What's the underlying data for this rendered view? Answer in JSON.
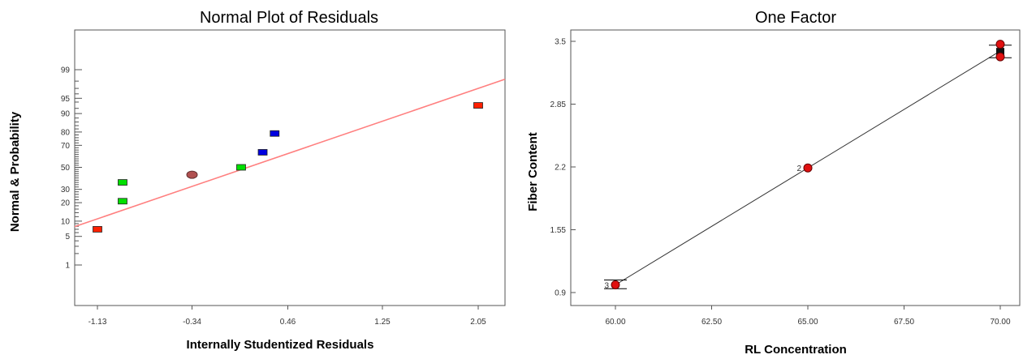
{
  "chart_data": [
    {
      "type": "scatter",
      "title": "Normal Plot of Residuals",
      "xlabel": "Internally Studentized Residuals",
      "ylabel": "Normal & Probability",
      "xlim": [
        -1.13,
        2.05
      ],
      "x_ticks": [
        "-1.13",
        "-0.34",
        "0.46",
        "1.25",
        "2.05"
      ],
      "y_scale": "normal-probability",
      "y_ticks": [
        "1",
        "5",
        "10",
        "20",
        "30",
        "50",
        "70",
        "80",
        "90",
        "95",
        "99"
      ],
      "grid": false,
      "reference_line": {
        "color": "#ff7f7f",
        "x": [
          -1.13,
          2.05
        ],
        "y": [
          11,
          97
        ]
      },
      "points": [
        {
          "x": -1.13,
          "y": 7,
          "color": "#ff2000"
        },
        {
          "x": -0.92,
          "y": 21,
          "color": "#00e000"
        },
        {
          "x": -0.92,
          "y": 36,
          "color": "#00e000"
        },
        {
          "x": -0.34,
          "y": 43,
          "color": "#b05050"
        },
        {
          "x": 0.07,
          "y": 50,
          "color": "#00e000"
        },
        {
          "x": 0.25,
          "y": 64,
          "color": "#0000e0"
        },
        {
          "x": 0.35,
          "y": 79,
          "color": "#0000e0"
        },
        {
          "x": 2.05,
          "y": 93,
          "color": "#ff2000"
        }
      ]
    },
    {
      "type": "line",
      "title": "One Factor",
      "xlabel": "RL Concentration",
      "ylabel": "Fiber Content",
      "xlim": [
        60,
        70
      ],
      "ylim": [
        0.9,
        3.5
      ],
      "x_ticks": [
        "60.00",
        "62.50",
        "65.00",
        "67.50",
        "70.00"
      ],
      "y_ticks": [
        "0.9",
        "1.55",
        "2.2",
        "2.85",
        "3.5"
      ],
      "grid": false,
      "fit_line": {
        "x": [
          60,
          65,
          70
        ],
        "y": [
          0.98,
          2.19,
          3.4
        ]
      },
      "points": [
        {
          "x": 60,
          "y": 0.98,
          "count": "3"
        },
        {
          "x": 65,
          "y": 2.19,
          "count": "2"
        },
        {
          "x": 70,
          "y": 3.47
        },
        {
          "x": 70,
          "y": 3.34
        }
      ],
      "error_bars": [
        {
          "x": 60,
          "low": 0.94,
          "high": 1.03
        },
        {
          "x": 70,
          "low": 3.33,
          "high": 3.46
        }
      ],
      "mean_markers": [
        {
          "x": 70,
          "y": 3.39
        }
      ]
    }
  ]
}
